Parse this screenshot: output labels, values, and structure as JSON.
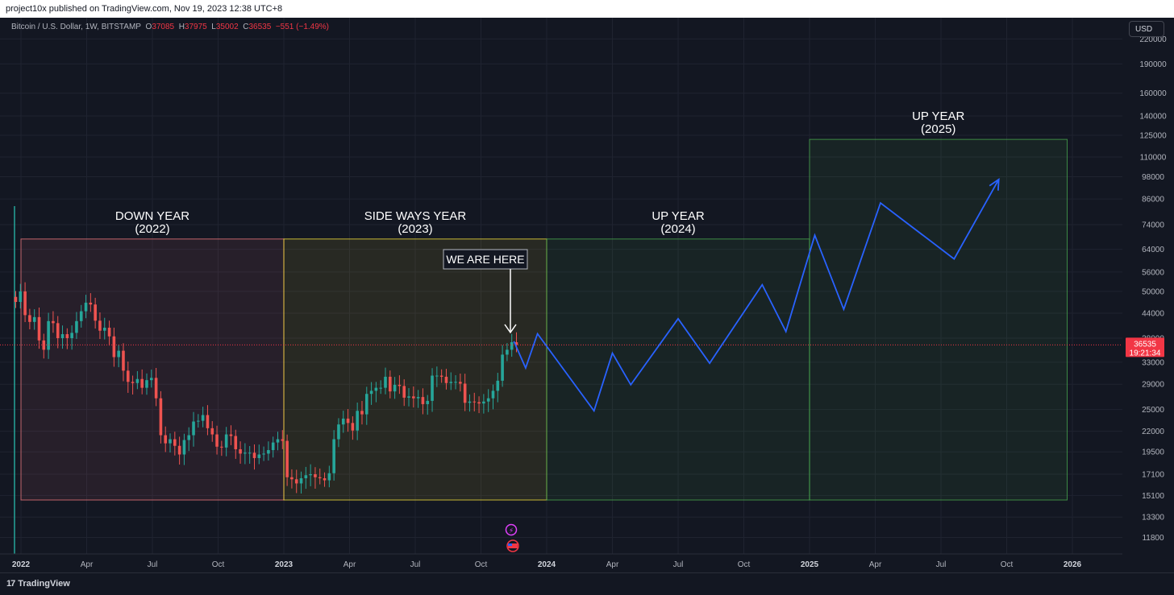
{
  "header": {
    "published_text": "project10x published on TradingView.com, Nov 19, 2023 12:38 UTC+8"
  },
  "legend": {
    "symbol_text": "Bitcoin / U.S. Dollar, 1W, BITSTAMP",
    "o_label": "O",
    "o_value": "37085",
    "h_label": "H",
    "h_value": "37975",
    "l_label": "L",
    "l_value": "35002",
    "c_label": "C",
    "c_value": "36535",
    "change": "−551 (−1.49%)"
  },
  "currency_button": "USD",
  "footer": {
    "logo_mark": "17",
    "logo_text": "TradingView"
  },
  "colors": {
    "background": "#131722",
    "up": "#26a69a",
    "down": "#ef5350",
    "projection": "#2962ff",
    "down_zone": "#f77c80",
    "sideways_zone": "#ffeb3b",
    "up_zone": "#4caf50",
    "price_line": "#f23645"
  },
  "chart_data": {
    "type": "candlestick",
    "symbol": "Bitcoin / U.S. Dollar",
    "interval": "1W",
    "exchange": "BITSTAMP",
    "y_scale": "log",
    "y_ticks": [
      220000,
      190000,
      160000,
      140000,
      125000,
      110000,
      98000,
      86000,
      74000,
      64000,
      56000,
      50000,
      44000,
      38000,
      33000,
      29000,
      25000,
      22000,
      19500,
      17100,
      15100,
      13300,
      11800
    ],
    "x_ticks": [
      {
        "label": "2022",
        "t": 2022.0,
        "bold": true
      },
      {
        "label": "Apr",
        "t": 2022.25
      },
      {
        "label": "Jul",
        "t": 2022.5
      },
      {
        "label": "Oct",
        "t": 2022.75
      },
      {
        "label": "2023",
        "t": 2023.0,
        "bold": true
      },
      {
        "label": "Apr",
        "t": 2023.25
      },
      {
        "label": "Jul",
        "t": 2023.5
      },
      {
        "label": "Oct",
        "t": 2023.75
      },
      {
        "label": "2024",
        "t": 2024.0,
        "bold": true
      },
      {
        "label": "Apr",
        "t": 2024.25
      },
      {
        "label": "Jul",
        "t": 2024.5
      },
      {
        "label": "Oct",
        "t": 2024.75
      },
      {
        "label": "2025",
        "t": 2025.0,
        "bold": true
      },
      {
        "label": "Apr",
        "t": 2025.25
      },
      {
        "label": "Jul",
        "t": 2025.5
      },
      {
        "label": "Oct",
        "t": 2025.75
      },
      {
        "label": "2026",
        "t": 2026.0,
        "bold": true
      }
    ],
    "last_price": {
      "value": 36535,
      "label": "36535",
      "countdown": "19:21:34"
    },
    "weekly_closes": [
      47000,
      50000,
      43500,
      41800,
      43000,
      37500,
      35500,
      42000,
      41500,
      38000,
      38900,
      38000,
      39200,
      42000,
      44500,
      46800,
      46300,
      42100,
      39700,
      40400,
      38400,
      34000,
      35300,
      31400,
      29400,
      29200,
      29900,
      28400,
      29700,
      30100,
      26700,
      21500,
      20500,
      21000,
      20200,
      19200,
      20900,
      21500,
      23300,
      23400,
      24200,
      22400,
      21600,
      20100,
      20000,
      21600,
      21400,
      19800,
      19300,
      19400,
      19400,
      18800,
      19200,
      19300,
      19700,
      20600,
      21000,
      20800,
      16800,
      16600,
      16200,
      16700,
      17000,
      17100,
      16800,
      16700,
      16500,
      17200,
      21000,
      22900,
      23700,
      23100,
      22100,
      24800,
      24300,
      27400,
      27900,
      28400,
      28400,
      30300,
      27800,
      28900,
      28700,
      26800,
      27000,
      26700,
      26900,
      25800,
      26300,
      30500,
      30500,
      30300,
      29200,
      29400,
      29400,
      29100,
      26000,
      26200,
      26100,
      25900,
      26200,
      26700,
      27900,
      29600,
      34500,
      35500,
      37100,
      36535
    ],
    "zones": [
      {
        "label": "DOWN YEAR",
        "sublabel": "(2022)",
        "t0": 2022.0,
        "t1": 2023.0,
        "top": 68000,
        "bottom": 14700
      },
      {
        "label": "SIDE WAYS YEAR",
        "sublabel": "(2023)",
        "t0": 2023.0,
        "t1": 2024.0,
        "top": 68000,
        "bottom": 14700
      },
      {
        "label": "UP YEAR",
        "sublabel": "(2024)",
        "t0": 2024.0,
        "t1": 2025.0,
        "top": 68000,
        "bottom": 14700
      },
      {
        "label": "UP YEAR",
        "sublabel": "(2025)",
        "t0": 2025.0,
        "t1": 2025.98,
        "top": 122000,
        "bottom": 14700
      }
    ],
    "projection_path": [
      {
        "t": 2023.875,
        "v": 37300
      },
      {
        "t": 2023.92,
        "v": 31900
      },
      {
        "t": 2023.965,
        "v": 39000
      },
      {
        "t": 2024.18,
        "v": 24800
      },
      {
        "t": 2024.25,
        "v": 34800
      },
      {
        "t": 2024.32,
        "v": 28900
      },
      {
        "t": 2024.5,
        "v": 42600
      },
      {
        "t": 2024.62,
        "v": 32800
      },
      {
        "t": 2024.82,
        "v": 52000
      },
      {
        "t": 2024.91,
        "v": 39500
      },
      {
        "t": 2025.02,
        "v": 69500
      },
      {
        "t": 2025.13,
        "v": 45000
      },
      {
        "t": 2025.27,
        "v": 84000
      },
      {
        "t": 2025.55,
        "v": 60500
      },
      {
        "t": 2025.72,
        "v": 96500
      }
    ],
    "annotation": {
      "text": "WE ARE HERE"
    }
  }
}
